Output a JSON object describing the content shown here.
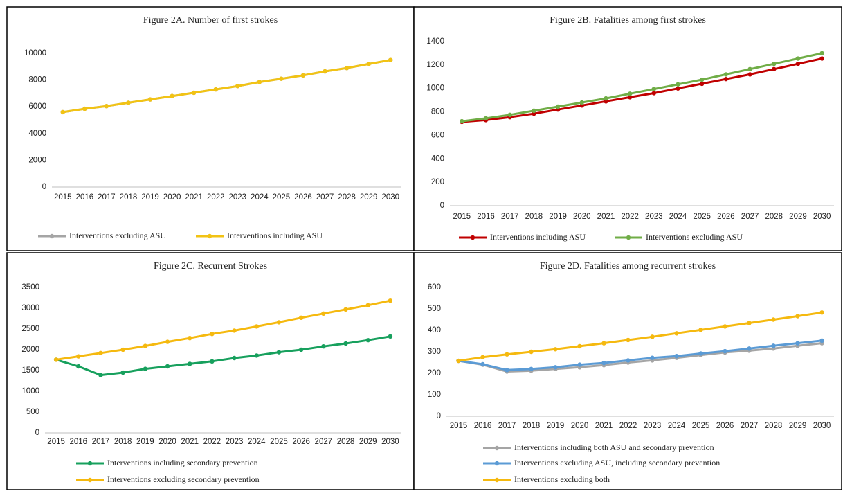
{
  "chart_data": [
    {
      "type": "line",
      "title": "Figure 2A. Number of first strokes",
      "categories": [
        "2015",
        "2016",
        "2017",
        "2018",
        "2019",
        "2020",
        "2021",
        "2022",
        "2023",
        "2024",
        "2025",
        "2026",
        "2027",
        "2028",
        "2029",
        "2030"
      ],
      "series": [
        {
          "name": "Interventions excluding  ASU",
          "color": "#a5a5a5",
          "values": [
            5600,
            5850,
            6050,
            6300,
            6550,
            6800,
            7050,
            7300,
            7550,
            7850,
            8100,
            8350,
            8650,
            8900,
            9200,
            9500
          ]
        },
        {
          "name": "Interventions including ASU",
          "color": "#f2c314",
          "values": [
            5600,
            5850,
            6050,
            6300,
            6550,
            6800,
            7050,
            7300,
            7550,
            7850,
            8100,
            8350,
            8650,
            8900,
            9200,
            9500
          ]
        }
      ],
      "ylim": [
        0,
        10000
      ],
      "yticks": [
        0,
        2000,
        4000,
        6000,
        8000,
        10000
      ],
      "grid": false,
      "legend": "bottom"
    },
    {
      "type": "line",
      "title": "Figure 2B. Fatalities among first strokes",
      "categories": [
        "2015",
        "2016",
        "2017",
        "2018",
        "2019",
        "2020",
        "2021",
        "2022",
        "2023",
        "2024",
        "2025",
        "2026",
        "2027",
        "2028",
        "2029",
        "2030"
      ],
      "series": [
        {
          "name": "Interventions including ASU",
          "color": "#c00000",
          "values": [
            715,
            730,
            755,
            785,
            820,
            855,
            890,
            925,
            960,
            1000,
            1040,
            1080,
            1120,
            1165,
            1210,
            1255
          ]
        },
        {
          "name": "Interventions excluding ASU",
          "color": "#70ad47",
          "values": [
            720,
            745,
            775,
            810,
            845,
            880,
            915,
            955,
            995,
            1035,
            1075,
            1120,
            1165,
            1210,
            1255,
            1300
          ]
        }
      ],
      "ylim": [
        0,
        1400
      ],
      "yticks": [
        0,
        200,
        400,
        600,
        800,
        1000,
        1200,
        1400
      ],
      "grid": false,
      "legend": "bottom"
    },
    {
      "type": "line",
      "title": "Figure 2C. Recurrent Strokes",
      "categories": [
        "2015",
        "2016",
        "2017",
        "2018",
        "2019",
        "2020",
        "2021",
        "2022",
        "2023",
        "2024",
        "2025",
        "2026",
        "2027",
        "2028",
        "2029",
        "2030"
      ],
      "series": [
        {
          "name": "Interventions including secondary prevention",
          "color": "#17a05d",
          "values": [
            1760,
            1600,
            1390,
            1450,
            1540,
            1600,
            1660,
            1720,
            1800,
            1860,
            1940,
            2000,
            2080,
            2150,
            2230,
            2320
          ]
        },
        {
          "name": "Interventions excluding  secondary prevention",
          "color": "#f5b90f",
          "values": [
            1760,
            1840,
            1920,
            2000,
            2090,
            2190,
            2280,
            2380,
            2460,
            2560,
            2660,
            2770,
            2870,
            2970,
            3070,
            3180
          ]
        }
      ],
      "ylim": [
        0,
        3500
      ],
      "yticks": [
        0,
        500,
        1000,
        1500,
        2000,
        2500,
        3000,
        3500
      ],
      "grid": false,
      "legend": "bottom"
    },
    {
      "type": "line",
      "title": "Figure 2D. Fatalities among recurrent strokes",
      "categories": [
        "2015",
        "2016",
        "2017",
        "2018",
        "2019",
        "2020",
        "2021",
        "2022",
        "2023",
        "2024",
        "2025",
        "2026",
        "2027",
        "2028",
        "2029",
        "2030"
      ],
      "series": [
        {
          "name": "Interventions including both ASU and secondary prevention",
          "color": "#a5a5a5",
          "values": [
            258,
            240,
            208,
            212,
            220,
            228,
            238,
            250,
            260,
            272,
            285,
            297,
            305,
            315,
            328,
            340
          ]
        },
        {
          "name": "Interventions excluding  ASU, including secondary prevention",
          "color": "#5b9bd5",
          "values": [
            258,
            242,
            215,
            220,
            228,
            240,
            248,
            260,
            272,
            280,
            292,
            303,
            315,
            328,
            340,
            352
          ]
        },
        {
          "name": "Interventions excluding both",
          "color": "#f5b90f",
          "values": [
            258,
            275,
            288,
            300,
            312,
            326,
            340,
            355,
            370,
            386,
            402,
            418,
            434,
            450,
            466,
            483
          ]
        }
      ],
      "ylim": [
        0,
        600
      ],
      "yticks": [
        0,
        100,
        200,
        300,
        400,
        500,
        600
      ],
      "grid": false,
      "legend": "bottom"
    }
  ]
}
